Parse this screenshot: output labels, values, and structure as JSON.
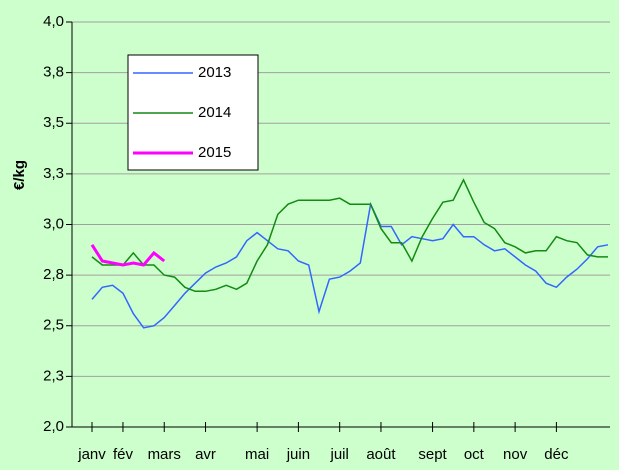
{
  "chart_data": {
    "type": "line",
    "y_label": "€/kg",
    "categories": [
      "janv",
      null,
      null,
      "fév",
      null,
      null,
      null,
      "mars",
      null,
      null,
      null,
      "avr",
      null,
      null,
      null,
      null,
      "mai",
      null,
      null,
      null,
      "juin",
      null,
      null,
      null,
      "juil",
      null,
      null,
      null,
      "août",
      null,
      null,
      null,
      null,
      "sept",
      null,
      null,
      null,
      "oct",
      null,
      null,
      null,
      "nov",
      null,
      null,
      null,
      "déc",
      null,
      null,
      null,
      null,
      null
    ],
    "series": [
      {
        "name": "2013",
        "color": "#3366ff",
        "values": [
          2.63,
          2.69,
          2.7,
          2.66,
          2.56,
          2.49,
          2.5,
          2.54,
          2.6,
          2.66,
          2.71,
          2.76,
          2.79,
          2.81,
          2.84,
          2.92,
          2.96,
          2.92,
          2.88,
          2.87,
          2.82,
          2.8,
          2.57,
          2.73,
          2.74,
          2.77,
          2.81,
          3.1,
          2.99,
          2.99,
          2.9,
          2.94,
          2.93,
          2.92,
          2.93,
          3.0,
          2.94,
          2.94,
          2.9,
          2.87,
          2.88,
          2.84,
          2.8,
          2.77,
          2.71,
          2.69,
          2.74,
          2.78,
          2.83,
          2.89,
          2.9
        ]
      },
      {
        "name": "2014",
        "color": "#138a13",
        "values": [
          2.84,
          2.8,
          2.8,
          2.8,
          2.86,
          2.8,
          2.8,
          2.75,
          2.74,
          2.69,
          2.67,
          2.67,
          2.68,
          2.7,
          2.68,
          2.71,
          2.82,
          2.9,
          3.05,
          3.1,
          3.12,
          3.12,
          3.12,
          3.12,
          3.13,
          3.1,
          3.1,
          3.1,
          2.98,
          2.91,
          2.91,
          2.82,
          2.94,
          3.03,
          3.11,
          3.12,
          3.22,
          3.11,
          3.01,
          2.98,
          2.91,
          2.89,
          2.86,
          2.87,
          2.87,
          2.94,
          2.92,
          2.91,
          2.85,
          2.84,
          2.84
        ]
      },
      {
        "name": "2015",
        "color": "#ff00ff",
        "width": 3,
        "values": [
          2.9,
          2.82,
          2.81,
          2.8,
          2.81,
          2.8,
          2.86,
          2.82,
          null,
          null,
          null,
          null,
          null,
          null,
          null,
          null,
          null,
          null,
          null,
          null,
          null,
          null,
          null,
          null,
          null,
          null,
          null,
          null,
          null,
          null,
          null,
          null,
          null,
          null,
          null,
          null,
          null,
          null,
          null,
          null,
          null,
          null,
          null,
          null,
          null,
          null,
          null,
          null,
          null,
          null,
          null
        ]
      }
    ],
    "ylim": [
      2.0,
      4.0
    ],
    "yticks": [
      {
        "value": 2.0,
        "label": "2,0"
      },
      {
        "value": 2.25,
        "label": "2,3"
      },
      {
        "value": 2.5,
        "label": "2,5"
      },
      {
        "value": 2.75,
        "label": "2,8"
      },
      {
        "value": 3.0,
        "label": "3,0"
      },
      {
        "value": 3.25,
        "label": "3,3"
      },
      {
        "value": 3.5,
        "label": "3,5"
      },
      {
        "value": 3.75,
        "label": "3,8"
      },
      {
        "value": 4.0,
        "label": "4,0"
      }
    ],
    "grid": true
  }
}
